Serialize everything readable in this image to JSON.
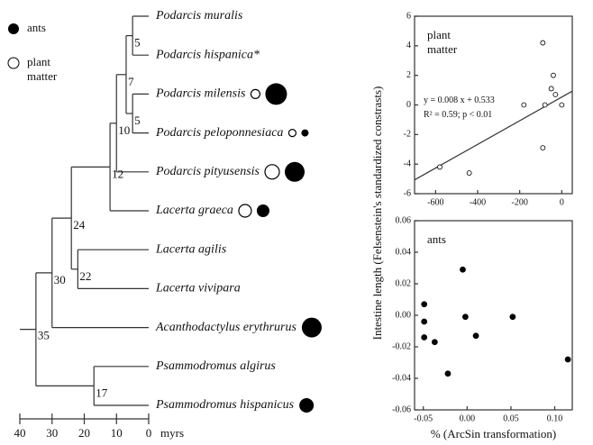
{
  "legend": {
    "ants": "ants",
    "plant": [
      "plant",
      "matter"
    ]
  },
  "tree": {
    "axis": {
      "label": "myrs",
      "ticks": [
        40,
        30,
        20,
        10,
        0
      ],
      "lim": [
        40,
        0
      ]
    },
    "root": {
      "age": 35,
      "children": [
        {
          "age": 30,
          "children": [
            {
              "age": 24,
              "children": [
                {
                  "age": 12,
                  "children": [
                    {
                      "age": 10,
                      "children": [
                        {
                          "age": 7,
                          "children": [
                            {
                              "age": 5,
                              "children": [
                                {
                                  "name": "Podarcis muralis"
                                },
                                {
                                  "name": "Podarcis hispanica*"
                                }
                              ]
                            },
                            {
                              "age": 5,
                              "children": [
                                {
                                  "name": "Podarcis milensis",
                                  "plant_size": 5,
                                  "ants_size": 12
                                },
                                {
                                  "name": "Podarcis peloponnesiaca",
                                  "plant_size": 4,
                                  "ants_size": 4
                                }
                              ]
                            }
                          ]
                        },
                        {
                          "name": "Podarcis pityusensis",
                          "plant_size": 8,
                          "ants_size": 11
                        }
                      ]
                    },
                    {
                      "name": "Lacerta graeca",
                      "plant_size": 7,
                      "ants_size": 7
                    }
                  ]
                },
                {
                  "age": 22,
                  "children": [
                    {
                      "name": "Lacerta agilis"
                    },
                    {
                      "name": "Lacerta vivipara"
                    }
                  ]
                }
              ]
            },
            {
              "name": "Acanthodactylus erythrurus",
              "ants_size": 11
            }
          ]
        },
        {
          "age": 17,
          "children": [
            {
              "name": "Psammodromus algirus"
            },
            {
              "name": "Psammodromus hispanicus",
              "ants_size": 8
            }
          ]
        }
      ]
    }
  },
  "chart_data": [
    {
      "type": "scatter",
      "annotation": [
        "plant",
        "matter"
      ],
      "ylabel": "Intestine length (Felsenstein's standardized constrasts)",
      "x": [
        -580,
        -440,
        -180,
        -90,
        -40,
        -90,
        -80,
        -50,
        -30,
        0
      ],
      "values": [
        -4.2,
        -4.6,
        0,
        4.2,
        2,
        -2.9,
        0,
        1.1,
        0.7,
        0
      ],
      "filled": false,
      "color": "#000000",
      "fit": {
        "slope": 0.008,
        "intercept": 0.533,
        "text": [
          "y = 0.008 x + 0.533",
          "R² = 0.59; p < 0.01"
        ]
      },
      "xlim": [
        -700,
        50
      ],
      "xticks": [
        -600,
        -400,
        -200,
        0
      ],
      "ylim": [
        -6,
        6
      ],
      "yticks": [
        6,
        4,
        2,
        0,
        -2,
        -4,
        -6
      ]
    },
    {
      "type": "scatter",
      "annotation": [
        "ants"
      ],
      "xlabel": "% (ArcSin transformation)",
      "x": [
        -0.049,
        -0.049,
        -0.049,
        -0.037,
        -0.005,
        -0.002,
        0.01,
        -0.022,
        0.052,
        0.115
      ],
      "values": [
        0.007,
        -0.004,
        -0.014,
        -0.017,
        0.029,
        -0.001,
        -0.013,
        -0.037,
        -0.001,
        -0.028
      ],
      "filled": true,
      "color": "#000000",
      "xlim": [
        -0.06,
        0.12
      ],
      "xticks": [
        {
          "value": -0.05,
          "label": "-0.05"
        },
        {
          "value": 0,
          "label": "0.00"
        },
        {
          "value": 0.05,
          "label": "0.05"
        },
        {
          "value": 0.1,
          "label": "0.10"
        }
      ],
      "ylim": [
        -0.06,
        0.06
      ],
      "yticks": [
        0.06,
        0.04,
        0.02,
        {
          "value": 0,
          "label": "0.00"
        },
        -0.02,
        -0.04,
        -0.06
      ]
    }
  ]
}
